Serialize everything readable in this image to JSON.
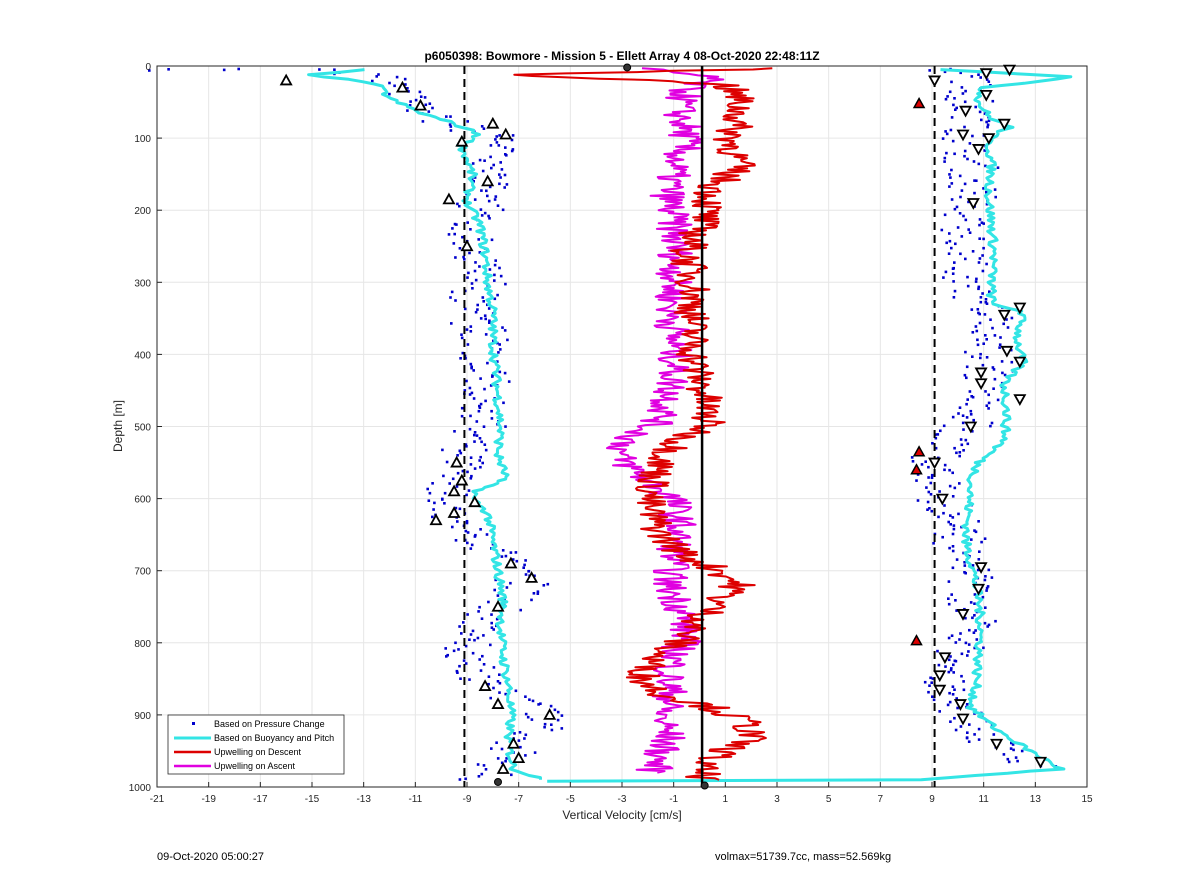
{
  "footer": {
    "left_text": "09-Oct-2020 05:00:27",
    "right_text": "volmax=51739.7cc, mass=52.569kg"
  },
  "chart_data": {
    "type": "scatter",
    "title": "p6050398: Bowmore - Mission 5 - Ellett Array 4 08-Oct-2020 22:48:11Z",
    "xlabel": "Vertical Velocity [cm/s]",
    "ylabel": "Depth [m]",
    "xlim": [
      -21,
      15
    ],
    "ylim": [
      0,
      1000
    ],
    "y_reversed": true,
    "grid": true,
    "legend_position": "bottom-left",
    "x_ticks": [
      -21,
      -19,
      -17,
      -15,
      -13,
      -11,
      -9,
      -7,
      -5,
      -3,
      -1,
      1,
      3,
      5,
      7,
      9,
      11,
      13,
      15
    ],
    "x_tick_labels": [
      "-21",
      "-19",
      "-17",
      "-15",
      "-13",
      "-11",
      "-9",
      "-7",
      "-5",
      "-3",
      "-1",
      "1",
      "3",
      "5",
      "7",
      "9",
      "11",
      "13",
      "15"
    ],
    "y_ticks": [
      0,
      100,
      200,
      300,
      400,
      500,
      600,
      700,
      800,
      900,
      1000
    ],
    "y_tick_labels": [
      "0",
      "100",
      "200",
      "300",
      "400",
      "500",
      "600",
      "700",
      "800",
      "900",
      "1000"
    ],
    "reference_lines": [
      {
        "x": -9.1,
        "style": "dashed",
        "color": "#000000"
      },
      {
        "x": 0.1,
        "style": "solid",
        "color": "#000000"
      },
      {
        "x": 9.1,
        "style": "dashed",
        "color": "#000000"
      }
    ],
    "series": [
      {
        "name": "Based on Pressure Change",
        "kind": "points",
        "color": "#0000cc",
        "descent": [
          [
            -20.5,
            5
          ],
          [
            -17.5,
            5
          ],
          [
            -14.5,
            5
          ],
          [
            -12,
            15
          ],
          [
            -11.5,
            35
          ],
          [
            -11,
            55
          ],
          [
            -10.5,
            70
          ],
          [
            -9.5,
            85
          ],
          [
            -8,
            95
          ],
          [
            -7.5,
            110
          ],
          [
            -8.5,
            130
          ],
          [
            -8,
            150
          ],
          [
            -8.5,
            180
          ],
          [
            -8.8,
            220
          ],
          [
            -8.5,
            260
          ],
          [
            -8.6,
            320
          ],
          [
            -8.5,
            380
          ],
          [
            -8.3,
            430
          ],
          [
            -8.4,
            480
          ],
          [
            -8.8,
            520
          ],
          [
            -9.3,
            550
          ],
          [
            -9.5,
            580
          ],
          [
            -9.8,
            620
          ],
          [
            -9,
            650
          ],
          [
            -7.8,
            680
          ],
          [
            -7.2,
            700
          ],
          [
            -6.6,
            720
          ],
          [
            -7.5,
            740
          ],
          [
            -8,
            760
          ],
          [
            -8.6,
            790
          ],
          [
            -9,
            820
          ],
          [
            -8.5,
            850
          ],
          [
            -7.5,
            870
          ],
          [
            -6.5,
            885
          ],
          [
            -5.8,
            900
          ],
          [
            -6.3,
            920
          ],
          [
            -7.2,
            940
          ],
          [
            -7.5,
            960
          ],
          [
            -8,
            975
          ],
          [
            -8.5,
            990
          ]
        ],
        "ascent": [
          [
            9.8,
            5
          ],
          [
            10.6,
            15
          ],
          [
            10.5,
            30
          ],
          [
            10.3,
            50
          ],
          [
            10.7,
            70
          ],
          [
            10.4,
            90
          ],
          [
            10.1,
            110
          ],
          [
            10.5,
            140
          ],
          [
            10.4,
            170
          ],
          [
            10.5,
            200
          ],
          [
            10.3,
            240
          ],
          [
            10.4,
            280
          ],
          [
            10.6,
            320
          ],
          [
            11.5,
            345
          ],
          [
            11.5,
            380
          ],
          [
            11.2,
            410
          ],
          [
            11,
            440
          ],
          [
            10.8,
            470
          ],
          [
            10.2,
            500
          ],
          [
            9.5,
            530
          ],
          [
            9,
            560
          ],
          [
            9.3,
            590
          ],
          [
            9.6,
            620
          ],
          [
            10,
            650
          ],
          [
            10.4,
            680
          ],
          [
            10.6,
            710
          ],
          [
            10.4,
            740
          ],
          [
            10.6,
            770
          ],
          [
            10.2,
            800
          ],
          [
            9.5,
            830
          ],
          [
            9.5,
            860
          ],
          [
            10,
            890
          ],
          [
            10.7,
            920
          ],
          [
            11.8,
            950
          ],
          [
            13,
            970
          ]
        ]
      },
      {
        "name": "Based on Buoyancy and Pitch",
        "kind": "line",
        "color": "#33e5e5",
        "width": 3,
        "descent": [
          [
            -13,
            5
          ],
          [
            -15,
            12
          ],
          [
            -12.5,
            25
          ],
          [
            -12,
            45
          ],
          [
            -10.8,
            65
          ],
          [
            -9.5,
            80
          ],
          [
            -8.5,
            95
          ],
          [
            -9.2,
            110
          ],
          [
            -8.8,
            150
          ],
          [
            -9,
            190
          ],
          [
            -8.5,
            220
          ],
          [
            -8.3,
            260
          ],
          [
            -8.2,
            300
          ],
          [
            -8.0,
            340
          ],
          [
            -8.0,
            380
          ],
          [
            -7.9,
            420
          ],
          [
            -7.8,
            460
          ],
          [
            -7.7,
            500
          ],
          [
            -7.8,
            540
          ],
          [
            -7.5,
            570
          ],
          [
            -8.6,
            590
          ],
          [
            -8.8,
            600
          ],
          [
            -8.2,
            620
          ],
          [
            -8.0,
            660
          ],
          [
            -7.8,
            700
          ],
          [
            -7.6,
            740
          ],
          [
            -7.7,
            780
          ],
          [
            -7.6,
            820
          ],
          [
            -7.4,
            860
          ],
          [
            -7.3,
            900
          ],
          [
            -7.4,
            940
          ],
          [
            -7.2,
            975
          ],
          [
            -6,
            990
          ]
        ],
        "ascent": [
          [
            9.5,
            5
          ],
          [
            14.5,
            15
          ],
          [
            11,
            30
          ],
          [
            10.8,
            50
          ],
          [
            11.2,
            70
          ],
          [
            12,
            85
          ],
          [
            11.2,
            100
          ],
          [
            11.3,
            140
          ],
          [
            11.2,
            180
          ],
          [
            11.3,
            220
          ],
          [
            11.4,
            260
          ],
          [
            11.3,
            300
          ],
          [
            11.3,
            330
          ],
          [
            12.5,
            340
          ],
          [
            12.3,
            380
          ],
          [
            12.5,
            410
          ],
          [
            11.8,
            440
          ],
          [
            11.9,
            480
          ],
          [
            11.8,
            520
          ],
          [
            10.8,
            550
          ],
          [
            10.5,
            580
          ],
          [
            10.4,
            620
          ],
          [
            10.3,
            660
          ],
          [
            10.6,
            700
          ],
          [
            10.8,
            740
          ],
          [
            10.9,
            780
          ],
          [
            10.8,
            820
          ],
          [
            10.7,
            860
          ],
          [
            10.5,
            890
          ],
          [
            11.5,
            920
          ],
          [
            12.8,
            950
          ],
          [
            14,
            975
          ],
          [
            8.5,
            990
          ],
          [
            -6,
            992
          ]
        ]
      },
      {
        "name": "Upwelling on Descent",
        "kind": "line",
        "color": "#dd0000",
        "width": 2,
        "points": [
          [
            3.5,
            3
          ],
          [
            -7,
            12
          ],
          [
            1,
            25
          ],
          [
            1.5,
            45
          ],
          [
            1.5,
            70
          ],
          [
            1.2,
            100
          ],
          [
            1.5,
            140
          ],
          [
            0.5,
            170
          ],
          [
            0.2,
            210
          ],
          [
            -0.5,
            260
          ],
          [
            -0.2,
            310
          ],
          [
            -0.3,
            360
          ],
          [
            -0.2,
            410
          ],
          [
            0.2,
            460
          ],
          [
            0.3,
            500
          ],
          [
            -0.8,
            520
          ],
          [
            -1.5,
            550
          ],
          [
            -1.8,
            580
          ],
          [
            -2,
            610
          ],
          [
            -1.5,
            650
          ],
          [
            -0.5,
            680
          ],
          [
            0.8,
            700
          ],
          [
            1.5,
            720
          ],
          [
            0.8,
            740
          ],
          [
            0,
            770
          ],
          [
            -0.8,
            800
          ],
          [
            -1.8,
            820
          ],
          [
            -2.2,
            850
          ],
          [
            -1.5,
            870
          ],
          [
            0.5,
            890
          ],
          [
            1.8,
            910
          ],
          [
            2,
            930
          ],
          [
            1,
            950
          ],
          [
            0,
            970
          ],
          [
            0.2,
            990
          ]
        ]
      },
      {
        "name": "Upwelling on Ascent",
        "kind": "line",
        "color": "#e000e0",
        "width": 2,
        "points": [
          [
            -2.5,
            3
          ],
          [
            0.5,
            15
          ],
          [
            -0.5,
            30
          ],
          [
            -0.8,
            60
          ],
          [
            -0.5,
            100
          ],
          [
            -1,
            140
          ],
          [
            -1.2,
            180
          ],
          [
            -1.0,
            220
          ],
          [
            -0.9,
            260
          ],
          [
            -1.0,
            300
          ],
          [
            -1.1,
            340
          ],
          [
            -1.0,
            380
          ],
          [
            -0.9,
            420
          ],
          [
            -1.2,
            460
          ],
          [
            -1.5,
            490
          ],
          [
            -2.8,
            520
          ],
          [
            -3.2,
            540
          ],
          [
            -2.2,
            570
          ],
          [
            -1,
            600
          ],
          [
            -0.8,
            640
          ],
          [
            -1.0,
            680
          ],
          [
            -1.2,
            720
          ],
          [
            -0.6,
            760
          ],
          [
            -0.5,
            790
          ],
          [
            -1.0,
            820
          ],
          [
            -1.2,
            850
          ],
          [
            -1.1,
            880
          ],
          [
            -1.5,
            900
          ],
          [
            -1.2,
            930
          ],
          [
            -1.6,
            960
          ],
          [
            -1.8,
            980
          ]
        ]
      }
    ],
    "markers": {
      "triangles_descent": [
        [
          -16,
          20
        ],
        [
          -11.5,
          30
        ],
        [
          -10.8,
          55
        ],
        [
          -8,
          80
        ],
        [
          -7.5,
          95
        ],
        [
          -9.2,
          105
        ],
        [
          -8.2,
          160
        ],
        [
          -9.7,
          185
        ],
        [
          -9,
          250
        ],
        [
          -9.4,
          550
        ],
        [
          -9.2,
          575
        ],
        [
          -9.5,
          590
        ],
        [
          -8.7,
          605
        ],
        [
          -9.5,
          620
        ],
        [
          -10.2,
          630
        ],
        [
          -7.3,
          690
        ],
        [
          -6.5,
          710
        ],
        [
          -7.8,
          750
        ],
        [
          -8.3,
          860
        ],
        [
          -7.8,
          885
        ],
        [
          -5.8,
          900
        ],
        [
          -7.2,
          940
        ],
        [
          -7,
          960
        ],
        [
          -7.6,
          975
        ]
      ],
      "triangles_ascent": [
        [
          12,
          5
        ],
        [
          11.1,
          10
        ],
        [
          9.1,
          20
        ],
        [
          11.1,
          40
        ],
        [
          10.3,
          62
        ],
        [
          11.8,
          80
        ],
        [
          10.2,
          95
        ],
        [
          11.2,
          100
        ],
        [
          10.8,
          115
        ],
        [
          10.6,
          190
        ],
        [
          12.4,
          335
        ],
        [
          11.8,
          345
        ],
        [
          11.9,
          395
        ],
        [
          12.4,
          410
        ],
        [
          10.9,
          425
        ],
        [
          10.9,
          440
        ],
        [
          12.4,
          462
        ],
        [
          10.5,
          500
        ],
        [
          9.1,
          550
        ],
        [
          9.4,
          600
        ],
        [
          10.9,
          695
        ],
        [
          10.8,
          725
        ],
        [
          10.2,
          760
        ],
        [
          9.5,
          820
        ],
        [
          9.3,
          845
        ],
        [
          9.3,
          865
        ],
        [
          10.1,
          885
        ],
        [
          10.2,
          905
        ],
        [
          11.5,
          940
        ],
        [
          13.2,
          965
        ]
      ],
      "red_marked": [
        [
          8.5,
          52
        ],
        [
          8.5,
          535
        ],
        [
          8.4,
          560
        ],
        [
          8.4,
          797
        ]
      ]
    }
  }
}
